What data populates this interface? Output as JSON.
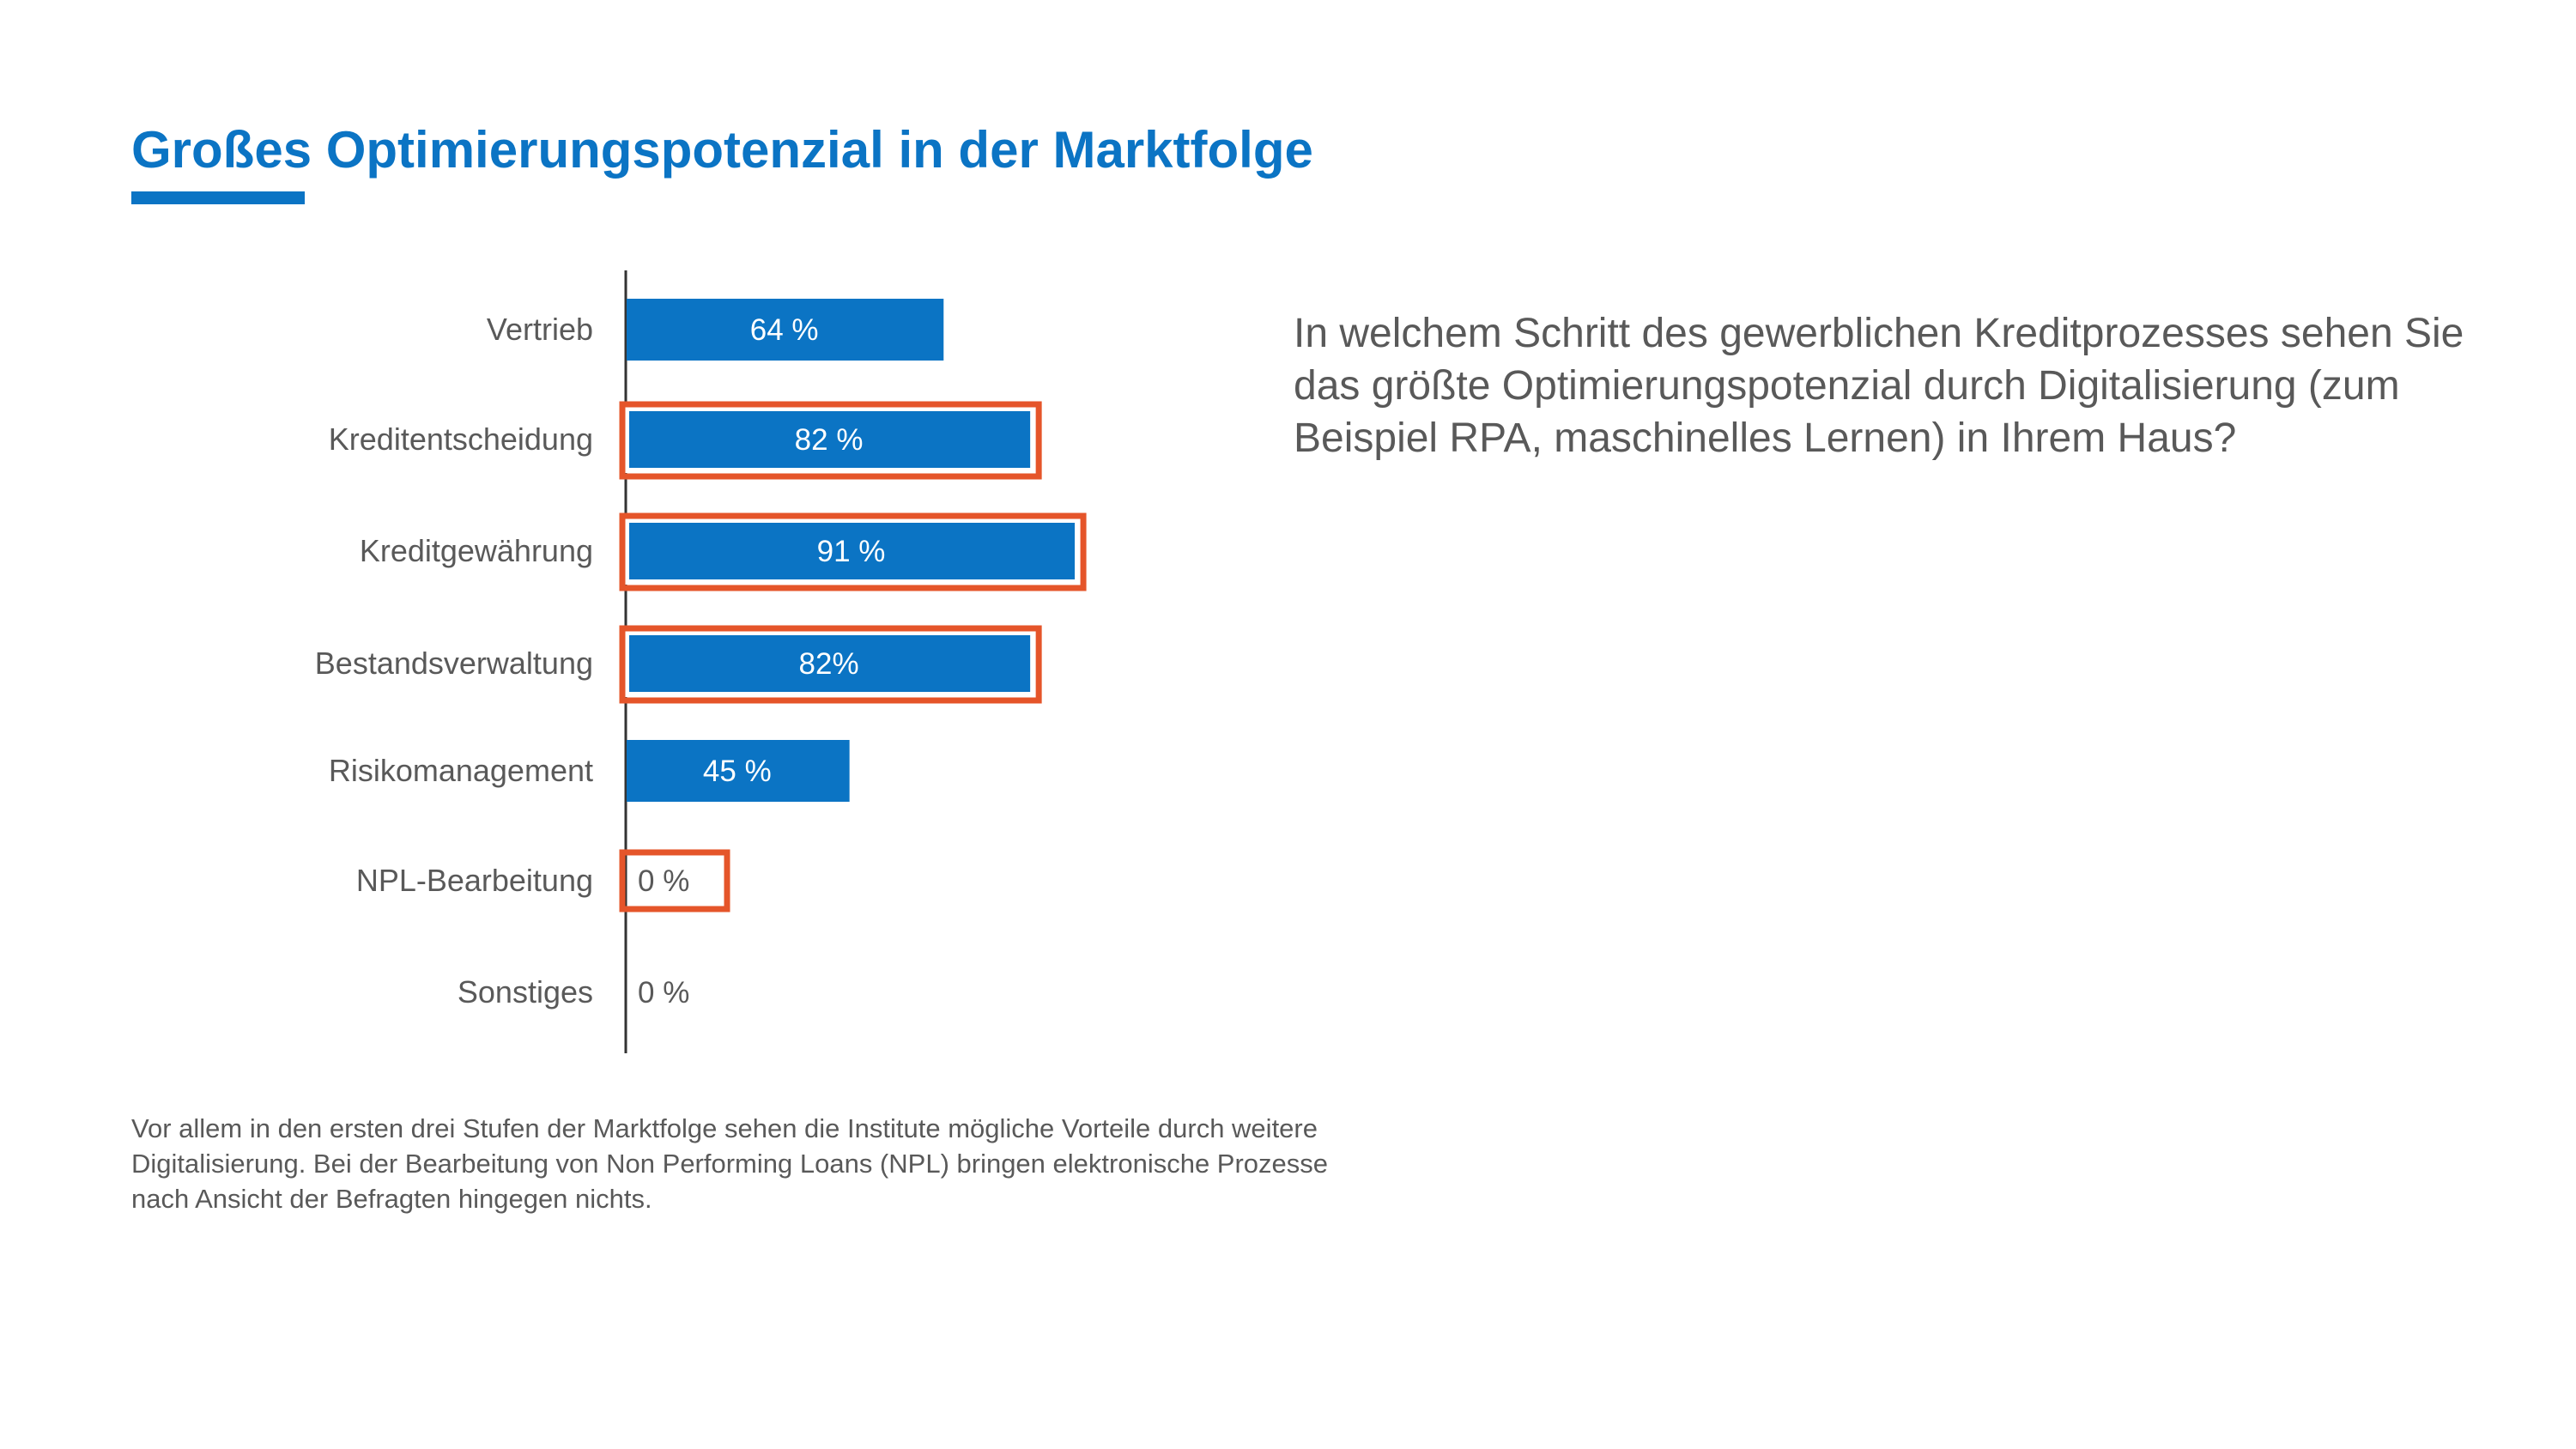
{
  "title": "Großes Optimierungspotenzial in der Marktfolge",
  "question": "In welchem Schritt des gewerblichen Kreditprozesses sehen Sie das größte Optimierungspotenzial durch Digitalisierung (zum Beispiel RPA, maschinelles Lernen) in Ihrem Haus?",
  "footnote": "Vor allem in den ersten drei Stufen der Marktfolge sehen die Institute mögliche Vorteile durch weitere Digitalisierung. Bei der Bearbeitung von Non Performing Loans (NPL) bringen elektronische Prozesse nach Ansicht der Befragten hingegen nichts.",
  "colors": {
    "bar": "#0b74c4",
    "highlight": "#e5552a",
    "text": "#595959",
    "title": "#0b74c4"
  },
  "chart_data": {
    "type": "bar",
    "orientation": "horizontal",
    "categories": [
      "Vertrieb",
      "Kreditentscheidung",
      "Kreditgewährung",
      "Bestandsverwaltung",
      "Risikomanagement",
      "NPL-Bearbeitung",
      "Sonstiges"
    ],
    "values": [
      64,
      82,
      91,
      82,
      45,
      0,
      0
    ],
    "value_labels": [
      "64 %",
      "82 %",
      "91 %",
      "82%",
      "45 %",
      "0 %",
      "0 %"
    ],
    "unit": "%",
    "highlighted": [
      false,
      true,
      true,
      true,
      false,
      true,
      false
    ],
    "xlim": [
      0,
      100
    ],
    "grid": false,
    "legend": "none"
  }
}
